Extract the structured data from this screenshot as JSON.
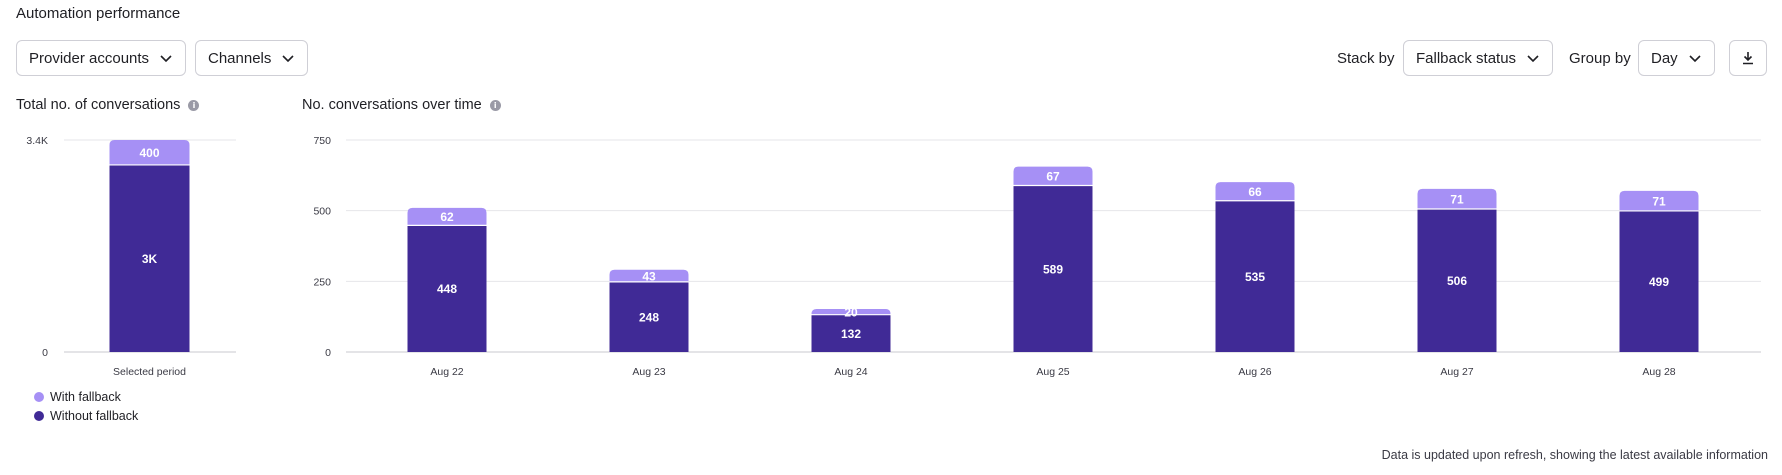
{
  "header": {
    "title": "Automation performance"
  },
  "filters": {
    "provider_accounts": "Provider accounts",
    "channels": "Channels"
  },
  "controls": {
    "stack_by_label": "Stack by",
    "stack_by_value": "Fallback status",
    "group_by_label": "Group by",
    "group_by_value": "Day",
    "download_icon": "download-icon"
  },
  "footer_note": "Data is updated upon refresh, showing the latest available information",
  "colors": {
    "with_fallback": "#a690f5",
    "without_fallback": "#402a96",
    "grid": "#e6e6ea"
  },
  "chart_data": [
    {
      "type": "bar",
      "stacked": true,
      "title": "Total no. of conversations",
      "categories": [
        "Selected period"
      ],
      "series": [
        {
          "name": "Without fallback",
          "values": [
            3000
          ],
          "labels": [
            "3K"
          ]
        },
        {
          "name": "With fallback",
          "values": [
            400
          ],
          "labels": [
            "400"
          ]
        }
      ],
      "yticks": [
        {
          "value": 0,
          "label": "0"
        },
        {
          "value": 3400,
          "label": "3.4K"
        }
      ],
      "ylim": [
        0,
        3400
      ],
      "legend": "bottom-left"
    },
    {
      "type": "bar",
      "stacked": true,
      "title": "No. conversations over time",
      "categories": [
        "Aug 22",
        "Aug 23",
        "Aug 24",
        "Aug 25",
        "Aug 26",
        "Aug 27",
        "Aug 28"
      ],
      "series": [
        {
          "name": "Without fallback",
          "values": [
            448,
            248,
            132,
            589,
            535,
            506,
            499
          ]
        },
        {
          "name": "With fallback",
          "values": [
            62,
            43,
            20,
            67,
            66,
            71,
            71
          ]
        }
      ],
      "yticks": [
        {
          "value": 0,
          "label": "0"
        },
        {
          "value": 250,
          "label": "250"
        },
        {
          "value": 500,
          "label": "500"
        },
        {
          "value": 750,
          "label": "750"
        }
      ],
      "ylim": [
        0,
        750
      ],
      "grid": true
    }
  ]
}
